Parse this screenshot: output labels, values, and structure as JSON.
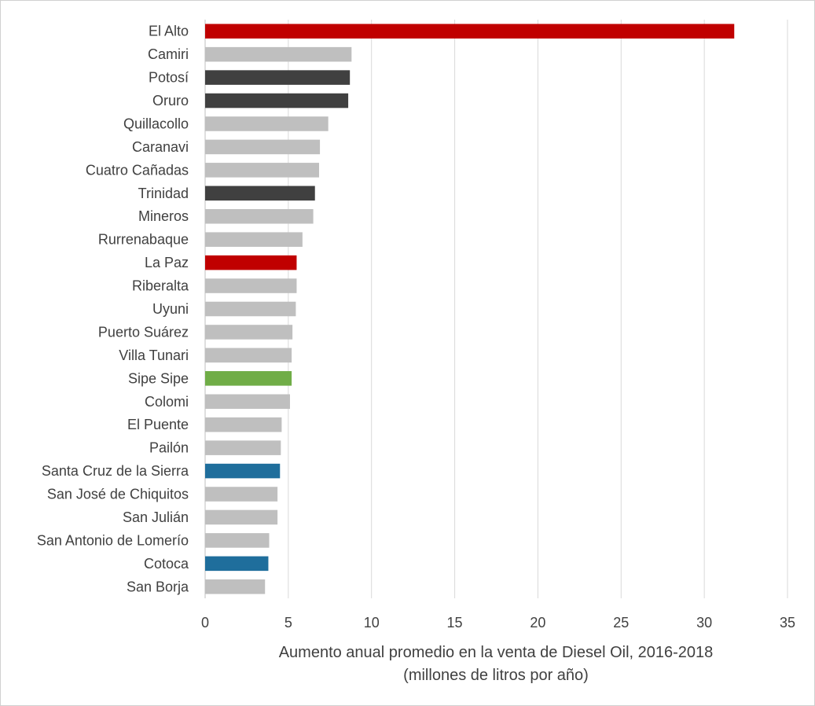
{
  "chart_data": {
    "type": "bar",
    "orientation": "horizontal",
    "categories": [
      "El Alto",
      "Camiri",
      "Potosí",
      "Oruro",
      "Quillacollo",
      "Caranavi",
      "Cuatro Cañadas",
      "Trinidad",
      "Mineros",
      "Rurrenabaque",
      "La Paz",
      "Riberalta",
      "Uyuni",
      "Puerto Suárez",
      "Villa Tunari",
      "Sipe Sipe",
      "Colomi",
      "El Puente",
      "Pailón",
      "Santa Cruz de la Sierra",
      "San José de Chiquitos",
      "San Julián",
      "San Antonio de Lomerío",
      "Cotoca",
      "San Borja"
    ],
    "values": [
      31.8,
      8.8,
      8.7,
      8.6,
      7.4,
      6.9,
      6.85,
      6.6,
      6.5,
      5.85,
      5.5,
      5.5,
      5.45,
      5.25,
      5.2,
      5.2,
      5.1,
      4.6,
      4.55,
      4.5,
      4.35,
      4.35,
      3.85,
      3.8,
      3.6
    ],
    "bar_colors": [
      "#c00000",
      "#bfbfbf",
      "#404040",
      "#404040",
      "#bfbfbf",
      "#bfbfbf",
      "#bfbfbf",
      "#404040",
      "#bfbfbf",
      "#bfbfbf",
      "#c00000",
      "#bfbfbf",
      "#bfbfbf",
      "#bfbfbf",
      "#bfbfbf",
      "#70ad47",
      "#bfbfbf",
      "#bfbfbf",
      "#bfbfbf",
      "#1f6e9c",
      "#bfbfbf",
      "#bfbfbf",
      "#bfbfbf",
      "#1f6e9c",
      "#bfbfbf"
    ],
    "x_ticks": [
      0,
      5,
      10,
      15,
      20,
      25,
      30,
      35
    ],
    "xlim": [
      0,
      35
    ],
    "xlabel": "Aumento anual promedio en la venta de Diesel Oil, 2016-2018",
    "xlabel_line2": "(millones de litros por año)",
    "title": "",
    "grid": true,
    "legend": false
  }
}
